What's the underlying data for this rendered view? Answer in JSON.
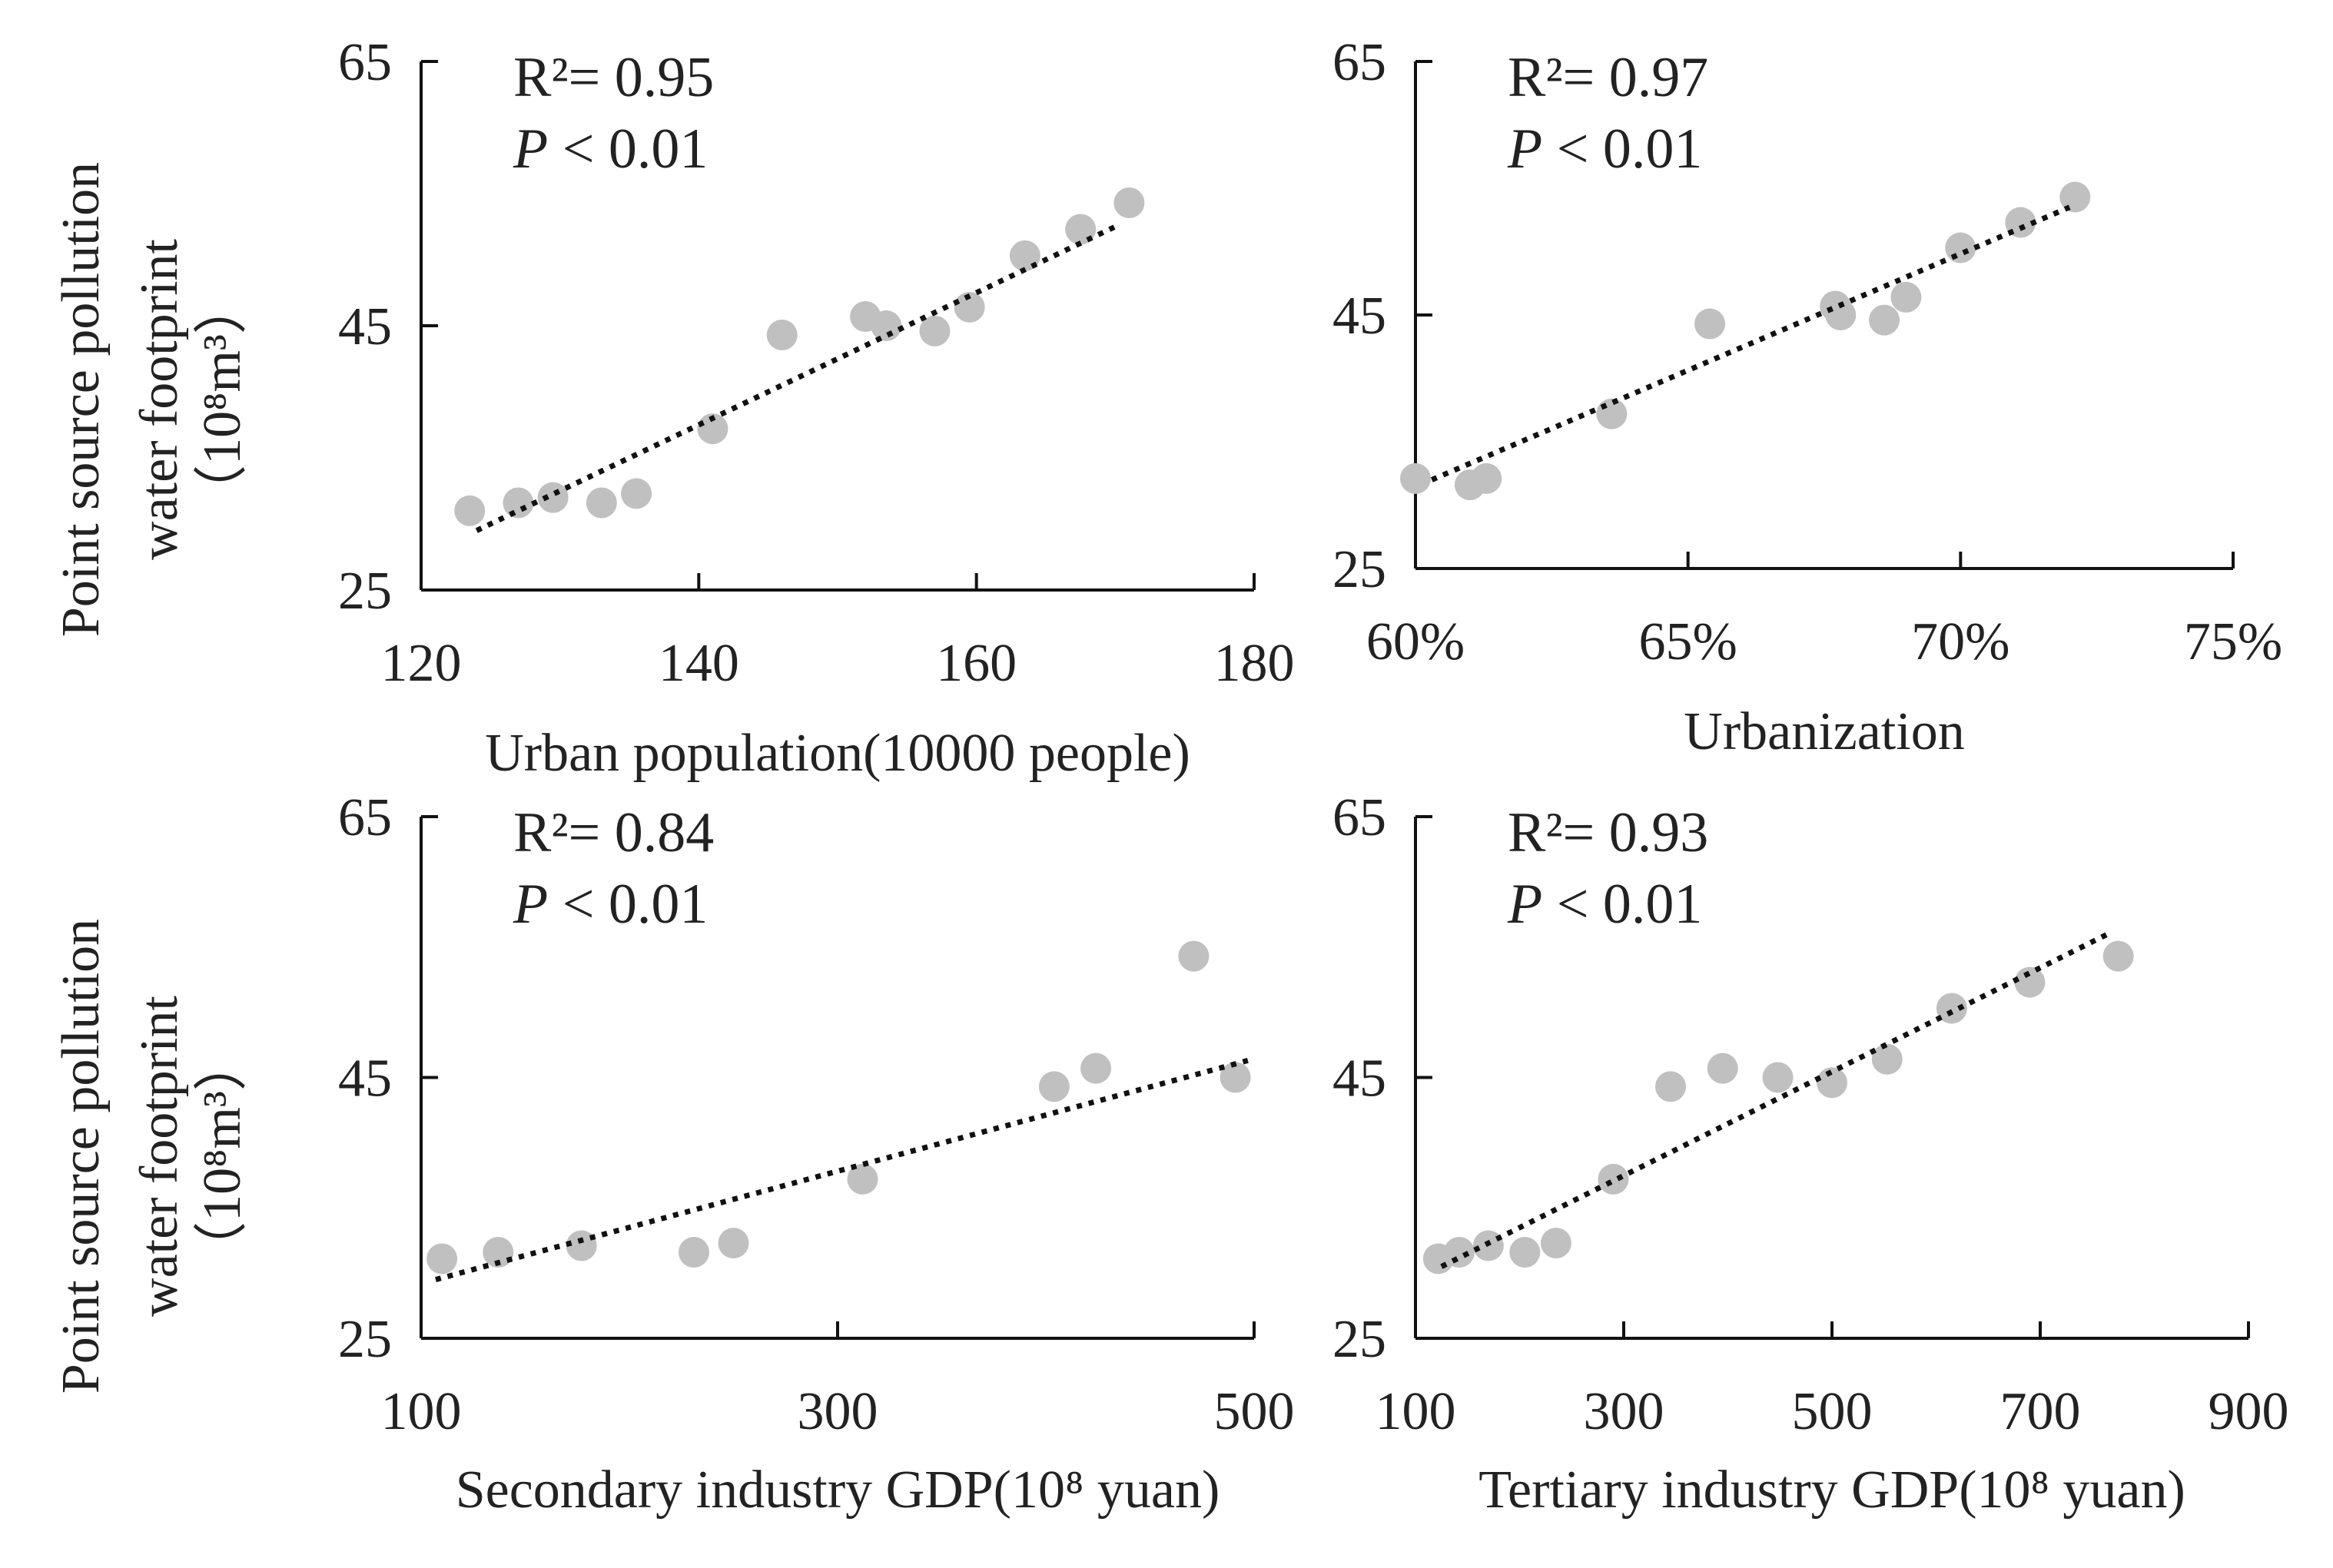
{
  "figure": {
    "ylabel_line1": "Point source pollution",
    "ylabel_line2": "water footprint",
    "ylabel_unit": "（10⁸m³）"
  },
  "chart_data": [
    {
      "type": "scatter",
      "panel": "top-left",
      "xlabel": "Urban population(10000 people)",
      "ylabel": "Point source pollution water footprint（10⁸m³）",
      "xlim": [
        120,
        180
      ],
      "ylim": [
        25,
        65
      ],
      "xticks": [
        120,
        140,
        160,
        180
      ],
      "xtick_labels": [
        "120",
        "140",
        "160",
        "180"
      ],
      "yticks": [
        25,
        45,
        65
      ],
      "ytick_labels": [
        "25",
        "45",
        "65"
      ],
      "r2": "R²= 0.95",
      "p_label": "P",
      "p_value": "< 0.01",
      "points": [
        {
          "x": 123.5,
          "y": 31.0
        },
        {
          "x": 127.0,
          "y": 31.6
        },
        {
          "x": 129.5,
          "y": 32.0
        },
        {
          "x": 133.0,
          "y": 31.6
        },
        {
          "x": 135.5,
          "y": 32.3
        },
        {
          "x": 141.0,
          "y": 37.2
        },
        {
          "x": 146.0,
          "y": 44.3
        },
        {
          "x": 152.0,
          "y": 45.7
        },
        {
          "x": 153.5,
          "y": 45.0
        },
        {
          "x": 157.0,
          "y": 44.6
        },
        {
          "x": 159.5,
          "y": 46.4
        },
        {
          "x": 163.5,
          "y": 50.3
        },
        {
          "x": 167.5,
          "y": 52.3
        },
        {
          "x": 171.0,
          "y": 54.3
        }
      ],
      "trendline": [
        [
          124,
          29.5
        ],
        [
          170,
          52.5
        ]
      ]
    },
    {
      "type": "scatter",
      "panel": "top-right",
      "xlabel": "Urbanization",
      "ylabel": "",
      "xlim": [
        60,
        75
      ],
      "ylim": [
        25,
        65
      ],
      "xticks": [
        60,
        65,
        70,
        75
      ],
      "xtick_labels": [
        "60%",
        "65%",
        "70%",
        "75%"
      ],
      "yticks": [
        25,
        45,
        65
      ],
      "ytick_labels": [
        "25",
        "45",
        "65"
      ],
      "r2": "R²= 0.97",
      "p_label": "P",
      "p_value": "< 0.01",
      "points": [
        {
          "x": 60.0,
          "y": 32.1
        },
        {
          "x": 61.0,
          "y": 31.6
        },
        {
          "x": 61.3,
          "y": 32.1
        },
        {
          "x": 63.6,
          "y": 37.2
        },
        {
          "x": 65.4,
          "y": 44.3
        },
        {
          "x": 67.7,
          "y": 45.7
        },
        {
          "x": 67.8,
          "y": 45.0
        },
        {
          "x": 68.6,
          "y": 44.6
        },
        {
          "x": 69.0,
          "y": 46.4
        },
        {
          "x": 70.0,
          "y": 50.3
        },
        {
          "x": 71.1,
          "y": 52.3
        },
        {
          "x": 72.1,
          "y": 54.3
        }
      ],
      "trendline": [
        [
          60.3,
          32.0
        ],
        [
          72.0,
          53.5
        ]
      ]
    },
    {
      "type": "scatter",
      "panel": "bottom-left",
      "xlabel": "Secondary industry GDP(10⁸ yuan)",
      "ylabel": "Point source pollution water footprint（10⁸m³）",
      "xlim": [
        100,
        500
      ],
      "ylim": [
        25,
        65
      ],
      "xticks": [
        100,
        300,
        500
      ],
      "xtick_labels": [
        "100",
        "300",
        "500"
      ],
      "yticks": [
        25,
        45,
        65
      ],
      "ytick_labels": [
        "25",
        "45",
        "65"
      ],
      "r2": "R²= 0.84",
      "p_label": "P",
      "p_value": "< 0.01",
      "points": [
        {
          "x": 110,
          "y": 31.1
        },
        {
          "x": 137,
          "y": 31.6
        },
        {
          "x": 177,
          "y": 32.1
        },
        {
          "x": 231,
          "y": 31.6
        },
        {
          "x": 250,
          "y": 32.3
        },
        {
          "x": 312,
          "y": 37.2
        },
        {
          "x": 404,
          "y": 44.3
        },
        {
          "x": 424,
          "y": 45.7
        },
        {
          "x": 471,
          "y": 54.3
        },
        {
          "x": 491,
          "y": 45.0
        }
      ],
      "trendline": [
        [
          107,
          29.5
        ],
        [
          497,
          46.3
        ]
      ]
    },
    {
      "type": "scatter",
      "panel": "bottom-right",
      "xlabel": "Tertiary industry GDP(10⁸ yuan)",
      "ylabel": "",
      "xlim": [
        100,
        900
      ],
      "ylim": [
        25,
        65
      ],
      "xticks": [
        100,
        300,
        500,
        700,
        900
      ],
      "xtick_labels": [
        "100",
        "300",
        "500",
        "700",
        "900"
      ],
      "yticks": [
        25,
        45,
        65
      ],
      "ytick_labels": [
        "25",
        "45",
        "65"
      ],
      "r2": "R²= 0.93",
      "p_label": "P",
      "p_value": "< 0.01",
      "points": [
        {
          "x": 122,
          "y": 31.1
        },
        {
          "x": 142,
          "y": 31.6
        },
        {
          "x": 170,
          "y": 32.1
        },
        {
          "x": 205,
          "y": 31.6
        },
        {
          "x": 235,
          "y": 32.3
        },
        {
          "x": 290,
          "y": 37.2
        },
        {
          "x": 345,
          "y": 44.3
        },
        {
          "x": 395,
          "y": 45.7
        },
        {
          "x": 448,
          "y": 45.0
        },
        {
          "x": 500,
          "y": 44.6
        },
        {
          "x": 553,
          "y": 46.4
        },
        {
          "x": 615,
          "y": 50.3
        },
        {
          "x": 690,
          "y": 52.3
        },
        {
          "x": 775,
          "y": 54.3
        }
      ],
      "trendline": [
        [
          125,
          30.5
        ],
        [
          765,
          56.0
        ]
      ]
    }
  ]
}
